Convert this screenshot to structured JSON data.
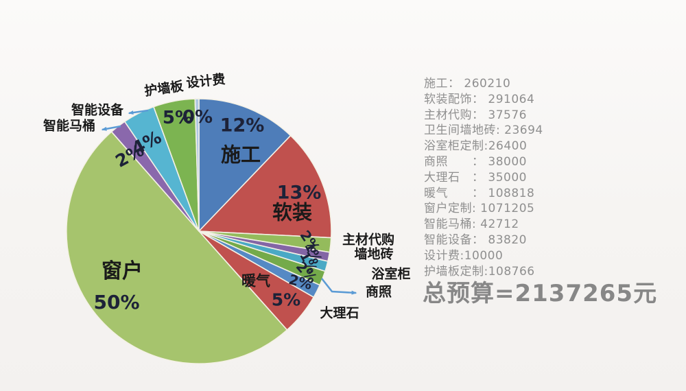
{
  "colors": {
    "background": "#f6f4f2",
    "arrow": "#5b9bd5",
    "slice_border": "#f4f1e6",
    "pct_text": "#1d2238",
    "name_text": "#1a1a1a",
    "list_text": "#8f8f8f",
    "total_text": "#878787"
  },
  "chart_data": {
    "type": "pie",
    "title": "",
    "start_angle_deg": -90,
    "direction": "clockwise",
    "legend_position": "none",
    "total_value": 2137265,
    "total_label": "总预算=2137265元",
    "currency": "元",
    "slices": [
      {
        "name": "施工",
        "pct_label": "12%",
        "pct": 12.17,
        "value": 260210,
        "color": "#4e7db9"
      },
      {
        "name": "软装",
        "pct_label": "13%",
        "pct": 13.62,
        "value": 291064,
        "color": "#c0514e"
      },
      {
        "name": "主材代购",
        "pct_label": "2%",
        "pct": 1.76,
        "value": 37576,
        "color": "#94bb5c"
      },
      {
        "name": "墙地砖",
        "pct_label": "1%",
        "pct": 1.11,
        "value": 23694,
        "color": "#8365a5"
      },
      {
        "name": "浴室柜",
        "pct_label": "1%",
        "pct": 1.24,
        "value": 26400,
        "color": "#4aa9c5"
      },
      {
        "name": "商照",
        "pct_label": "2%",
        "pct": 1.78,
        "value": 38000,
        "color": "#74aa4a"
      },
      {
        "name": "大理石",
        "pct_label": "2%",
        "pct": 1.64,
        "value": 35000,
        "color": "#5589c4"
      },
      {
        "name": "暖气",
        "pct_label": "5%",
        "pct": 5.09,
        "value": 108818,
        "color": "#c0514e"
      },
      {
        "name": "窗户",
        "pct_label": "50%",
        "pct": 50.12,
        "value": 1071205,
        "color": "#a6c46d"
      },
      {
        "name": "智能马桶",
        "pct_label": "2%",
        "pct": 2.0,
        "value": 42712,
        "color": "#8a68ac"
      },
      {
        "name": "智能设备",
        "pct_label": "4%",
        "pct": 3.92,
        "value": 83820,
        "color": "#56b5d1"
      },
      {
        "name": "护墙板",
        "pct_label": "5%",
        "pct": 5.09,
        "value": 108766,
        "color": "#7cb451"
      },
      {
        "name": "设计费",
        "pct_label": "0%",
        "pct": 0.47,
        "value": 10000,
        "color": "#afc7e2"
      }
    ]
  },
  "budget_list": {
    "items": [
      "施工： 260210",
      "软装配饰： 291064",
      "主材代购： 37576",
      "卫生间墙地砖: 23694",
      "浴室柜定制:26400",
      "商照　　： 38000",
      "大理石　： 35000",
      "暖气　　： 108818",
      "窗户定制: 1071205",
      "智能马桶: 42712",
      "智能设备： 83820",
      "设计费:10000",
      "护墙板定制:108766"
    ]
  }
}
